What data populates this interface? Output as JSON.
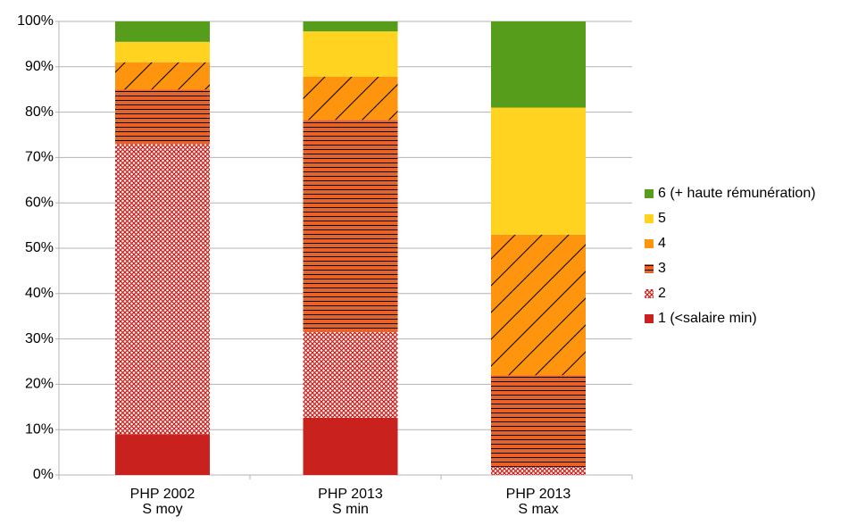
{
  "chart_data": {
    "type": "stacked_bar",
    "categories": [
      [
        "PHP 2002",
        "S moy"
      ],
      [
        "PHP 2013",
        "S min"
      ],
      [
        "PHP 2013",
        "S max"
      ]
    ],
    "series": [
      {
        "name": "1 (<salaire min)",
        "color": "#c9211e",
        "pattern": "solid",
        "values": [
          9,
          12.6,
          0
        ]
      },
      {
        "name": "2",
        "color": "#c9211e",
        "pattern": "crosshatch",
        "values": [
          64,
          18.9,
          1.8
        ]
      },
      {
        "name": "3",
        "color": "#e8622a",
        "pattern": "horizontal",
        "values": [
          12,
          46.8,
          20.2
        ]
      },
      {
        "name": "4",
        "color": "#ff950e",
        "pattern": "diagonal",
        "values": [
          6,
          9.5,
          31
        ]
      },
      {
        "name": "5",
        "color": "#ffd320",
        "pattern": "solid",
        "values": [
          4.5,
          10,
          28
        ]
      },
      {
        "name": "6 (+ haute rémunération)",
        "color": "#579d1c",
        "pattern": "solid",
        "values": [
          4.5,
          2.2,
          19
        ]
      }
    ],
    "ylim": [
      0,
      100
    ],
    "yticks": [
      {
        "value": 0,
        "label": "0%"
      },
      {
        "value": 10,
        "label": "10%"
      },
      {
        "value": 20,
        "label": "20%"
      },
      {
        "value": 30,
        "label": "30%"
      },
      {
        "value": 40,
        "label": "40%"
      },
      {
        "value": 50,
        "label": "50%"
      },
      {
        "value": 60,
        "label": "60%"
      },
      {
        "value": 70,
        "label": "70%"
      },
      {
        "value": 80,
        "label": "80%"
      },
      {
        "value": 90,
        "label": "90%"
      },
      {
        "value": 100,
        "label": "100%"
      }
    ],
    "grid": true,
    "legend": "right"
  }
}
